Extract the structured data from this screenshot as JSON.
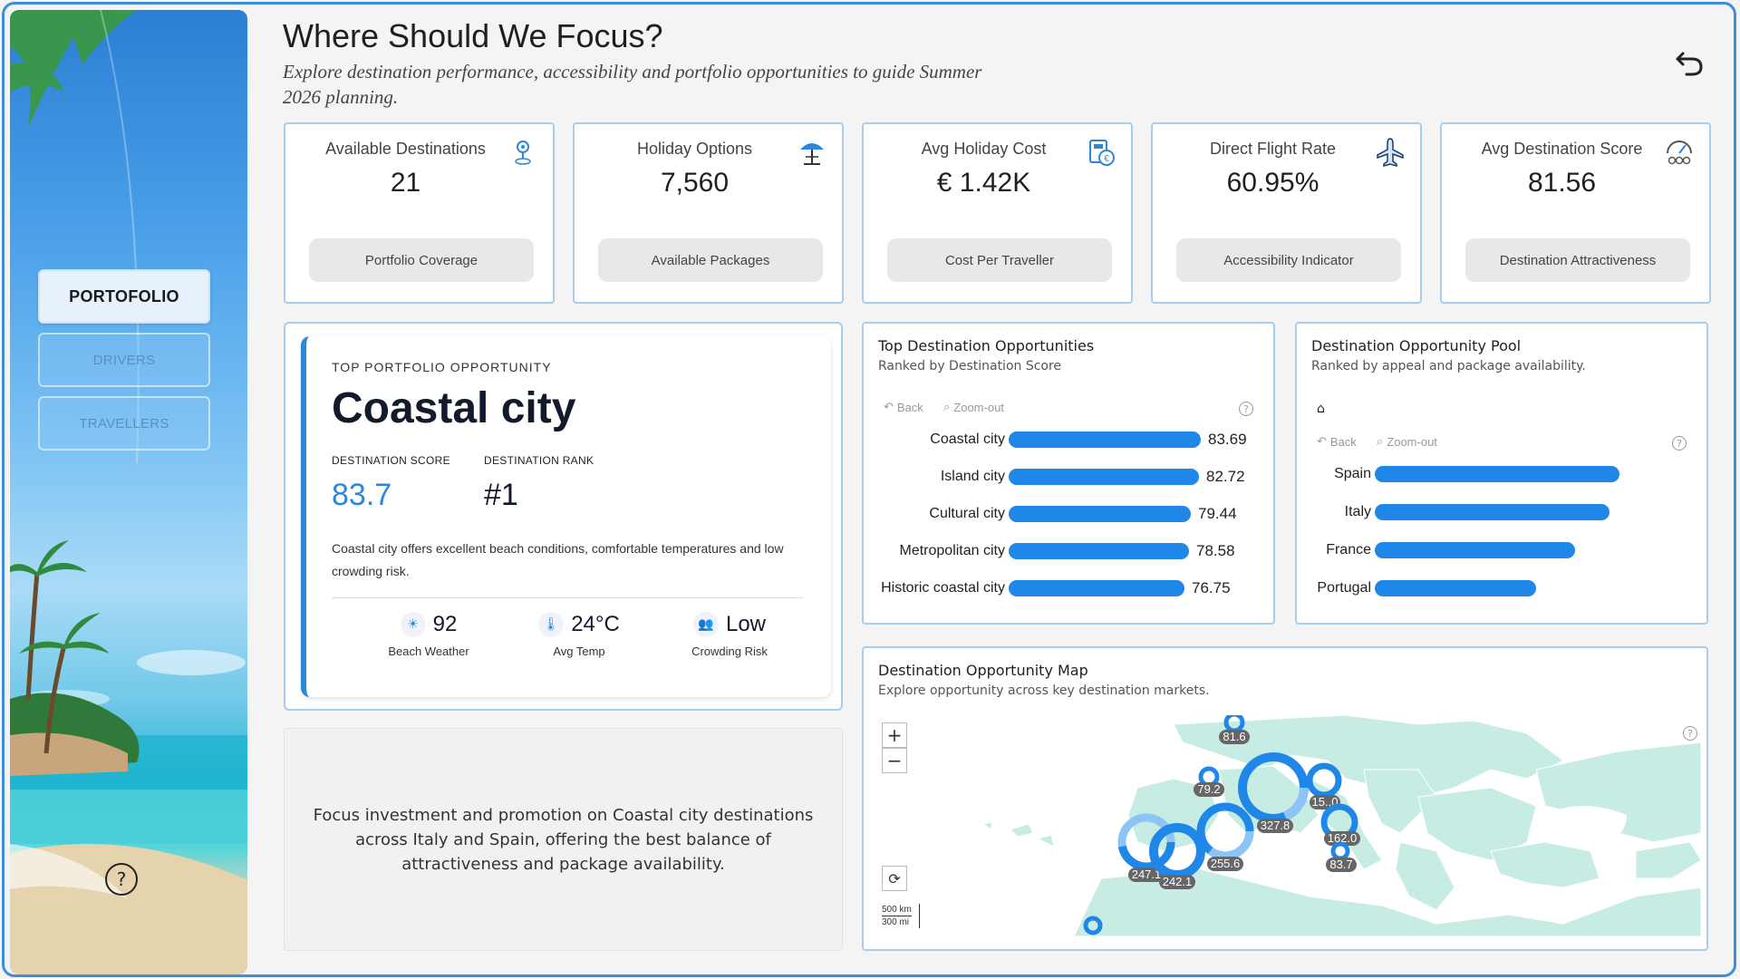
{
  "header": {
    "title": "Where Should We Focus?",
    "subtitle": "Explore destination performance, accessibility and portfolio opportunities to guide Summer 2026 planning."
  },
  "nav": {
    "items": [
      {
        "label": "PORTOFOLIO",
        "active": true
      },
      {
        "label": "DRIVERS",
        "active": false
      },
      {
        "label": "TRAVELLERS",
        "active": false
      }
    ],
    "help_label": "?"
  },
  "kpis": [
    {
      "title": "Available Destinations",
      "value": "21",
      "button": "Portfolio Coverage",
      "icon": "map-pin-icon"
    },
    {
      "title": "Holiday Options",
      "value": "7,560",
      "button": "Available Packages",
      "icon": "beach-umbrella-icon"
    },
    {
      "title": "Avg Holiday Cost",
      "value": "€ 1.42K",
      "button": "Cost Per Traveller",
      "icon": "cost-calculator-icon"
    },
    {
      "title": "Direct Flight Rate",
      "value": "60.95%",
      "button": "Accessibility Indicator",
      "icon": "airplane-icon"
    },
    {
      "title": "Avg Destination Score",
      "value": "81.56",
      "button": "Destination Attractiveness",
      "icon": "score-gauge-icon"
    }
  ],
  "opportunity": {
    "label": "TOP PORTFOLIO OPPORTUNITY",
    "name": "Coastal city",
    "score_label": "DESTINATION SCORE",
    "score": "83.7",
    "rank_label": "DESTINATION RANK",
    "rank": "#1",
    "description": "Coastal city offers excellent beach conditions, comfortable temperatures and low crowding risk.",
    "metrics": [
      {
        "value": "92",
        "label": "Beach Weather",
        "icon": "sun-icon"
      },
      {
        "value": "24°C",
        "label": "Avg Temp",
        "icon": "thermometer-icon"
      },
      {
        "value": "Low",
        "label": "Crowding Risk",
        "icon": "people-icon"
      }
    ]
  },
  "recommendation": "Focus investment and promotion on Coastal city destinations across Italy and Spain, offering the best balance of attractiveness and package availability.",
  "top_destinations": {
    "title": "Top Destination Opportunities",
    "subtitle": "Ranked by Destination Score",
    "back_label": "Back",
    "zoom_label": "Zoom-out"
  },
  "pool": {
    "title": "Destination Opportunity Pool",
    "subtitle": "Ranked by appeal and package availability.",
    "back_label": "Back",
    "zoom_label": "Zoom-out"
  },
  "map": {
    "title": "Destination Opportunity Map",
    "subtitle": "Explore opportunity across key destination markets.",
    "zoom_in": "+",
    "zoom_out": "−",
    "scale_km": "500 km",
    "scale_mi": "300 mi",
    "bubbles": [
      "81.6",
      "79.2",
      "327.8",
      "15..0",
      "162.0",
      "83.7",
      "247.1",
      "242.1",
      "255.6"
    ]
  },
  "colors": {
    "accent": "#1f87e8",
    "border": "#a9cdec",
    "score": "#2b87dc",
    "land": "#c7ece3"
  },
  "chart_data": [
    {
      "type": "bar",
      "title": "Top Destination Opportunities",
      "subtitle": "Ranked by Destination Score",
      "categories": [
        "Coastal city",
        "Island city",
        "Cultural city",
        "Metropolitan city",
        "Historic coastal city"
      ],
      "values": [
        83.69,
        82.72,
        79.44,
        78.58,
        76.75
      ],
      "xlim": [
        0,
        83.69
      ]
    },
    {
      "type": "bar",
      "title": "Destination Opportunity Pool",
      "subtitle": "Ranked by appeal and package availability.",
      "categories": [
        "Spain",
        "Italy",
        "France",
        "Portugal"
      ],
      "values": [
        100,
        96,
        82,
        66
      ],
      "xlim": [
        0,
        100
      ]
    }
  ]
}
